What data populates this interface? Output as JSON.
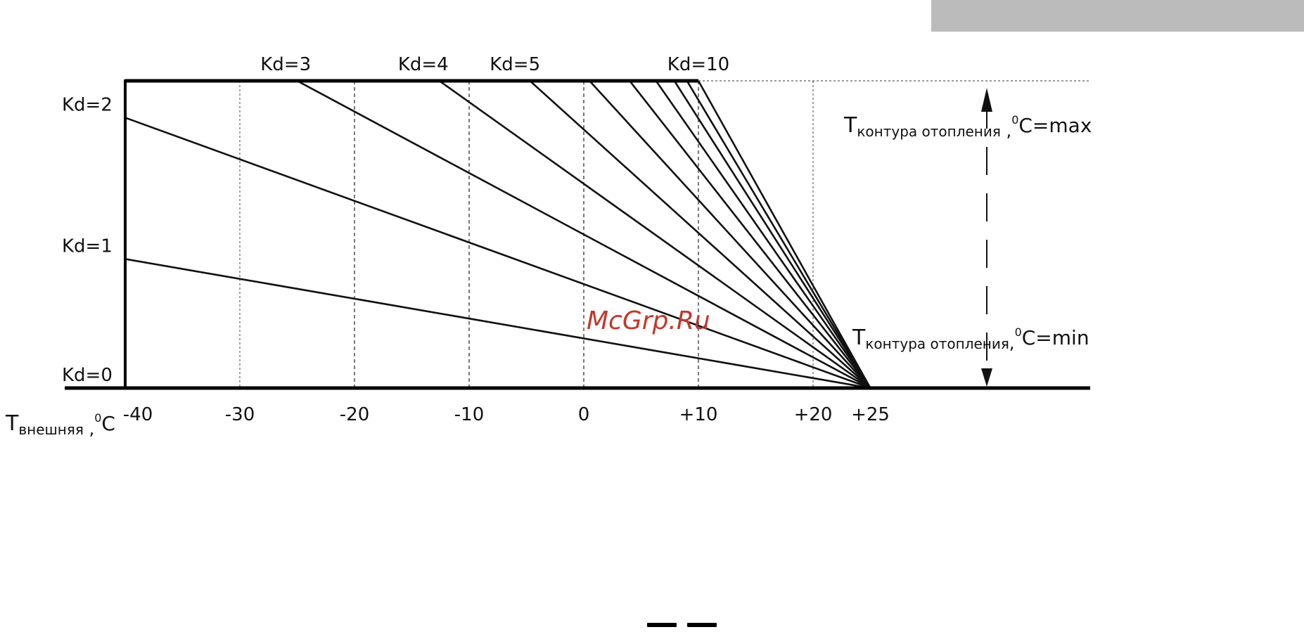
{
  "colors": {
    "corner_bar": "#bbbbbb",
    "axis": "#000000",
    "curves": "#111111",
    "watermark": "#c0392b"
  },
  "watermark": "McGrp.Ru",
  "chart_data": {
    "type": "line",
    "title": "",
    "xlabel": {
      "main": "T",
      "sub": "внешняя",
      "sep": " ,",
      "sup": "0",
      "unit": "C"
    },
    "ylabel_max": {
      "main": "T",
      "sub": "контура отопления",
      "sep": " ,",
      "sup": "0",
      "unit": "C=max"
    },
    "ylabel_min": {
      "main": "T",
      "sub": "контура отопления",
      "sep": ",",
      "sup": "0",
      "unit": "C=min"
    },
    "x_ticks": [
      "-40",
      "-30",
      "-20",
      "-10",
      "0",
      "+10",
      "+20",
      "+25"
    ],
    "x_tick_values": [
      -40,
      -30,
      -20,
      -10,
      0,
      10,
      20,
      25
    ],
    "xlim": [
      -45,
      44
    ],
    "ylim": [
      0,
      1
    ],
    "gridlines_x": [
      -30,
      -20,
      -10,
      0,
      10,
      20
    ],
    "grid": true,
    "pivot": {
      "x": 25,
      "y": 0
    },
    "series": [
      {
        "name": "Kd=0",
        "x": [
          -40,
          25
        ],
        "y": [
          0,
          0
        ]
      },
      {
        "name": "Kd=1",
        "x": [
          -40,
          25
        ],
        "y": [
          0.42,
          0
        ]
      },
      {
        "name": "Kd=2",
        "x": [
          -40,
          25
        ],
        "y": [
          0.88,
          0
        ]
      },
      {
        "name": "Kd=3",
        "x": [
          -25,
          25
        ],
        "y": [
          1,
          0
        ]
      },
      {
        "name": "Kd=4",
        "x": [
          -12.6,
          25
        ],
        "y": [
          1,
          0
        ]
      },
      {
        "name": "",
        "x": [
          -4.7,
          25
        ],
        "y": [
          1,
          0
        ]
      },
      {
        "name": "Kd=5",
        "x": [
          0.5,
          25
        ],
        "y": [
          1,
          0
        ]
      },
      {
        "name": "",
        "x": [
          4,
          25
        ],
        "y": [
          1,
          0
        ]
      },
      {
        "name": "",
        "x": [
          6.3,
          25
        ],
        "y": [
          1,
          0
        ]
      },
      {
        "name": "",
        "x": [
          7.9,
          25
        ],
        "y": [
          1,
          0
        ]
      },
      {
        "name": "",
        "x": [
          9,
          25
        ],
        "y": [
          1,
          0
        ]
      },
      {
        "name": "Kd=10",
        "x": [
          10,
          25
        ],
        "y": [
          1,
          0
        ]
      }
    ],
    "kd_labels": [
      {
        "text": "Kd=0",
        "y": 0
      },
      {
        "text": "Kd=1",
        "y": 0.42
      },
      {
        "text": "Kd=2",
        "y": 0.88
      },
      {
        "text": "Kd=3",
        "x": -26
      },
      {
        "text": "Kd=4",
        "x": -14
      },
      {
        "text": "Kd=5",
        "x": -6
      },
      {
        "text": "Kd=10",
        "x": 10
      }
    ]
  }
}
